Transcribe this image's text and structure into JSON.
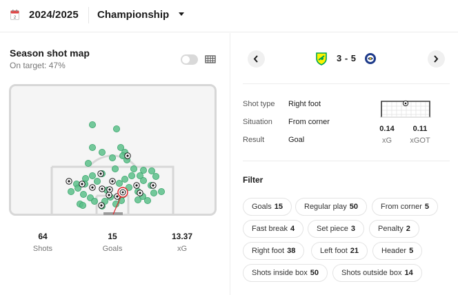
{
  "header": {
    "season": "2024/2025",
    "league": "Championship"
  },
  "shotmap": {
    "title": "Season shot map",
    "on_target_label": "On target:",
    "on_target_value": "47%",
    "stats": [
      {
        "value": "64",
        "label": "Shots"
      },
      {
        "value": "15",
        "label": "Goals"
      },
      {
        "value": "13.37",
        "label": "xG"
      }
    ]
  },
  "match": {
    "score": "3 - 5",
    "home_team_colors": [
      "#00a650",
      "#fff200"
    ],
    "away_team_colors": [
      "#1d3a8a",
      "#ffffff"
    ]
  },
  "shot_details": {
    "rows": [
      {
        "label": "Shot type",
        "value": "Right foot"
      },
      {
        "label": "Situation",
        "value": "From corner"
      },
      {
        "label": "Result",
        "value": "Goal"
      }
    ],
    "xg_value": "0.14",
    "xg_label": "xG",
    "xgot_value": "0.11",
    "xgot_label": "xGOT"
  },
  "filter": {
    "title": "Filter",
    "chips": [
      {
        "label": "Goals",
        "count": "15"
      },
      {
        "label": "Regular play",
        "count": "50"
      },
      {
        "label": "From corner",
        "count": "5"
      },
      {
        "label": "Fast break",
        "count": "4"
      },
      {
        "label": "Set piece",
        "count": "3"
      },
      {
        "label": "Penalty",
        "count": "2"
      },
      {
        "label": "Right foot",
        "count": "38"
      },
      {
        "label": "Left foot",
        "count": "21"
      },
      {
        "label": "Header",
        "count": "5"
      },
      {
        "label": "Shots inside box",
        "count": "50"
      },
      {
        "label": "Shots outside box",
        "count": "14"
      }
    ]
  },
  "colors": {
    "shot_fill": "#5cc08a",
    "shot_stroke": "#3aa56c",
    "selected_ring": "#e0262c",
    "pitch_line": "#d7d7d7"
  }
}
